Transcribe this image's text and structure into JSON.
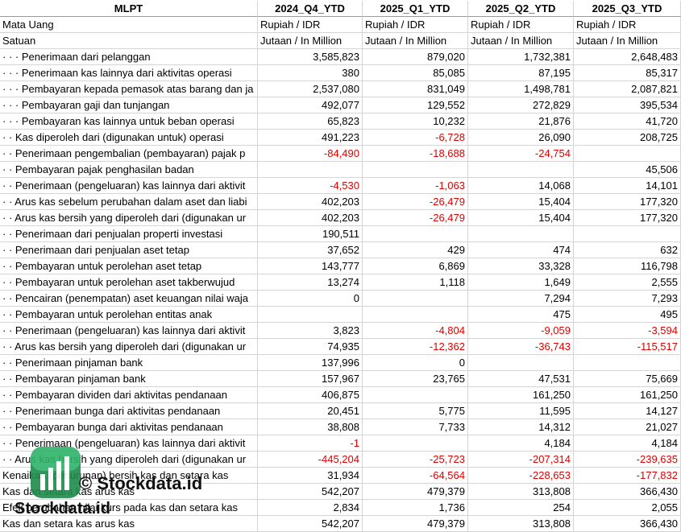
{
  "header": [
    "MLPT",
    "2024_Q4_YTD",
    "2025_Q1_YTD",
    "2025_Q2_YTD",
    "2025_Q3_YTD"
  ],
  "rows": [
    [
      "Mata Uang",
      "Rupiah / IDR",
      "Rupiah / IDR",
      "Rupiah / IDR",
      "Rupiah / IDR"
    ],
    [
      "Satuan",
      "Jutaan / In Million",
      "Jutaan / In Million",
      "Jutaan / In Million",
      "Jutaan / In Million"
    ],
    [
      "· · · Penerimaan dari pelanggan",
      "3,585,823",
      "879,020",
      "1,732,381",
      "2,648,483"
    ],
    [
      "· · · Penerimaan kas lainnya dari aktivitas operasi",
      "380",
      "85,085",
      "87,195",
      "85,317"
    ],
    [
      "· · · Pembayaran kepada pemasok atas barang dan ja",
      "2,537,080",
      "831,049",
      "1,498,781",
      "2,087,821"
    ],
    [
      "· · · Pembayaran gaji dan tunjangan",
      "492,077",
      "129,552",
      "272,829",
      "395,534"
    ],
    [
      "· · · Pembayaran kas lainnya untuk beban operasi",
      "65,823",
      "10,232",
      "21,876",
      "41,720"
    ],
    [
      "· · Kas diperoleh dari (digunakan untuk) operasi",
      "491,223",
      "-6,728",
      "26,090",
      "208,725"
    ],
    [
      "· · Penerimaan pengembalian (pembayaran) pajak p",
      "-84,490",
      "-18,688",
      "-24,754",
      null
    ],
    [
      "· · Pembayaran pajak penghasilan badan",
      null,
      null,
      null,
      "45,506"
    ],
    [
      "· · Penerimaan (pengeluaran) kas lainnya dari aktivit",
      "-4,530",
      "-1,063",
      "14,068",
      "14,101"
    ],
    [
      "· · Arus kas sebelum perubahan dalam aset dan liabi",
      "402,203",
      "-26,479",
      "15,404",
      "177,320"
    ],
    [
      "· · Arus kas bersih yang diperoleh dari (digunakan ur",
      "402,203",
      "-26,479",
      "15,404",
      "177,320"
    ],
    [
      "· · Penerimaan dari penjualan properti investasi",
      "190,511",
      null,
      null,
      null
    ],
    [
      "· · Penerimaan dari penjualan aset tetap",
      "37,652",
      "429",
      "474",
      "632"
    ],
    [
      "· · Pembayaran untuk perolehan aset tetap",
      "143,777",
      "6,869",
      "33,328",
      "116,798"
    ],
    [
      "· · Pembayaran untuk perolehan aset takberwujud",
      "13,274",
      "1,118",
      "1,649",
      "2,555"
    ],
    [
      "· · Pencairan (penempatan) aset keuangan nilai waja",
      "0",
      null,
      "7,294",
      "7,293"
    ],
    [
      "· · Pembayaran untuk perolehan entitas anak",
      null,
      null,
      "475",
      "495"
    ],
    [
      "· · Penerimaan (pengeluaran) kas lainnya dari aktivit",
      "3,823",
      "-4,804",
      "-9,059",
      "-3,594"
    ],
    [
      "· · Arus kas bersih yang diperoleh dari (digunakan ur",
      "74,935",
      "-12,362",
      "-36,743",
      "-115,517"
    ],
    [
      "· · Penerimaan pinjaman bank",
      "137,996",
      "0",
      null,
      null
    ],
    [
      "· · Pembayaran pinjaman bank",
      "157,967",
      "23,765",
      "47,531",
      "75,669"
    ],
    [
      "· · Pembayaran dividen dari aktivitas pendanaan",
      "406,875",
      null,
      "161,250",
      "161,250"
    ],
    [
      "· · Penerimaan bunga dari aktivitas pendanaan",
      "20,451",
      "5,775",
      "11,595",
      "14,127"
    ],
    [
      "· · Pembayaran bunga dari aktivitas pendanaan",
      "38,808",
      "7,733",
      "14,312",
      "21,027"
    ],
    [
      "· · Penerimaan (pengeluaran) kas lainnya dari aktivit",
      "-1",
      null,
      "4,184",
      "4,184"
    ],
    [
      "· · Arus kas bersih yang diperoleh dari (digunakan ur",
      "-445,204",
      "-25,723",
      "-207,314",
      "-239,635"
    ],
    [
      "Kenaikan (penurunan) bersih kas dan setara kas",
      "31,934",
      "-64,564",
      "-228,653",
      "-177,832"
    ],
    [
      "Kas dan setara kas arus kas",
      "542,207",
      "479,379",
      "313,808",
      "366,430"
    ],
    [
      "Efek perubahan nilai kurs pada kas dan setara kas",
      "2,834",
      "1,736",
      "254",
      "2,055"
    ],
    [
      "Kas dan setara kas arus kas",
      "542,207",
      "479,379",
      "313,808",
      "366,430"
    ]
  ],
  "watermark": [
    "© Stockdata.id",
    "Stockdata.id"
  ]
}
